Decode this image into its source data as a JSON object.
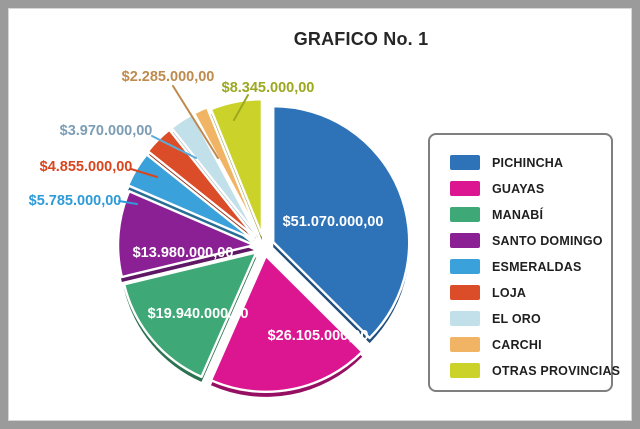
{
  "chart_data": {
    "type": "pie",
    "title": "GRAFICO No. 1",
    "legend_position": "right",
    "style": "exploded-3d",
    "series": [
      {
        "name": "PICHINCHA",
        "value": 51070000,
        "label": "$51.070.000,00",
        "color": "#2E73B8",
        "label_color": "#FFFFFF",
        "label_placement": "inside"
      },
      {
        "name": "GUAYAS",
        "value": 26105000,
        "label": "$26.105.000,00",
        "color": "#DB1690",
        "label_color": "#FFFFFF",
        "label_placement": "inside"
      },
      {
        "name": "MANABÍ",
        "value": 19940000,
        "label": "$19.940.000,00",
        "color": "#3FA877",
        "label_color": "#FFFFFF",
        "label_placement": "inside"
      },
      {
        "name": "SANTO DOMINGO",
        "value": 13980000,
        "label": "$13.980.000,00",
        "color": "#8B2094",
        "label_color": "#FFFFFF",
        "label_placement": "inside"
      },
      {
        "name": "ESMERALDAS",
        "value": 5785000,
        "label": "$5.785.000,00",
        "color": "#3BA1DA",
        "label_color": "#2E9BD8",
        "leader_color": "#2E9BD8",
        "label_placement": "outside"
      },
      {
        "name": "LOJA",
        "value": 4855000,
        "label": "$4.855.000,00",
        "color": "#DB4D28",
        "label_color": "#D9451E",
        "leader_color": "#D9451E",
        "label_placement": "outside"
      },
      {
        "name": "EL ORO",
        "value": 3970000,
        "label": "$3.970.000,00",
        "color": "#C2E0EA",
        "label_color": "#7C9DB3",
        "leader_color": "#5AACDC",
        "label_placement": "outside"
      },
      {
        "name": "CARCHI",
        "value": 2285000,
        "label": "$2.285.000,00",
        "color": "#F1B465",
        "label_color": "#BE8A4D",
        "leader_color": "#BE8A4D",
        "label_placement": "outside"
      },
      {
        "name": "OTRAS PROVINCIAS",
        "value": 8345000,
        "label": "$8.345.000,00",
        "color": "#CBD32B",
        "label_color": "#9CA820",
        "leader_color": "#9CA820",
        "label_placement": "outside"
      }
    ]
  },
  "frame": {
    "border_color": "#9B9B9B",
    "background": "#FFFFFF"
  },
  "legend": {
    "border_color": "#7F7F7F"
  }
}
